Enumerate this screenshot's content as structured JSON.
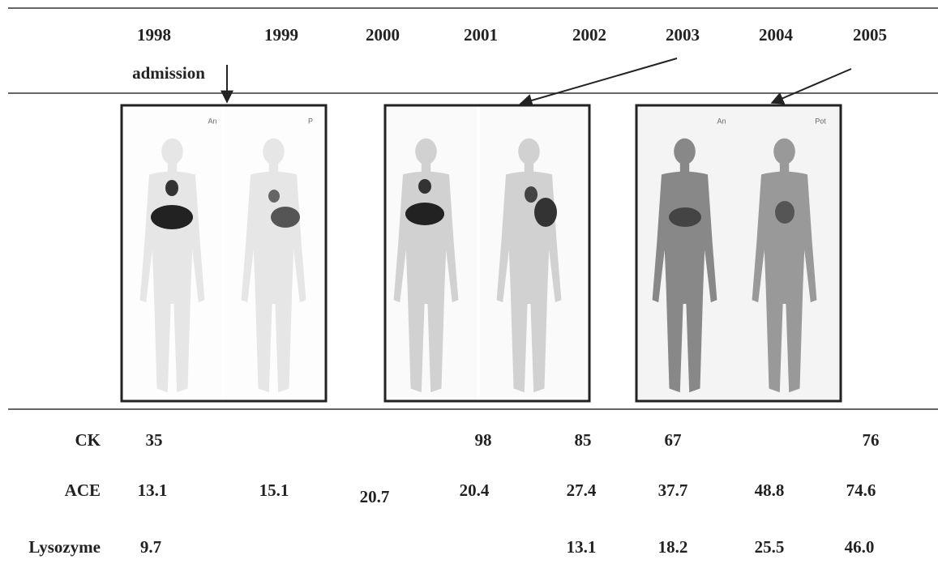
{
  "years": [
    "1998",
    "1999",
    "2000",
    "2001",
    "2002",
    "2003",
    "2004",
    "2005"
  ],
  "admission": "admission",
  "panel_labels": [
    "An",
    "P",
    "An",
    "Pot"
  ],
  "table": {
    "rows": [
      {
        "label": "CK",
        "values": [
          "35",
          null,
          null,
          "98",
          "85",
          "67",
          null,
          "76"
        ]
      },
      {
        "label": "ACE",
        "values": [
          "13.1",
          "15.1",
          "20.7",
          "20.4",
          "27.4",
          "37.7",
          "48.8",
          "74.6"
        ]
      },
      {
        "label": "Lysozyme",
        "values": [
          "9.7",
          null,
          null,
          null,
          "13.1",
          "18.2",
          "25.5",
          "46.0"
        ]
      }
    ]
  }
}
